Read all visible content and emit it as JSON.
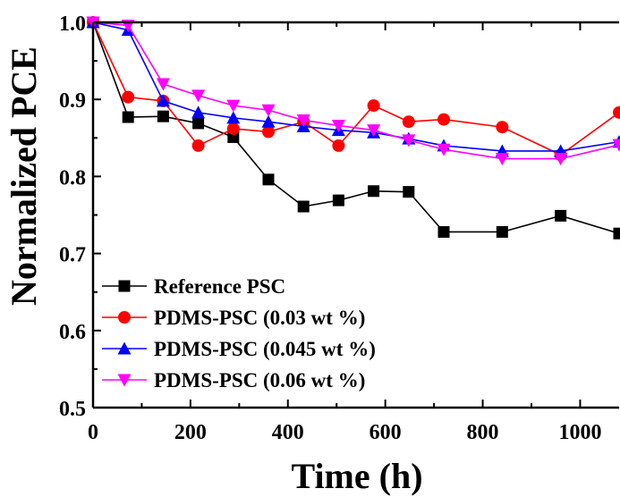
{
  "chart_data": {
    "type": "line",
    "title": "",
    "xlabel": "Time (h)",
    "ylabel": "Normalized PCE",
    "xlim": [
      0,
      1080
    ],
    "ylim": [
      0.5,
      1.0
    ],
    "xticks": [
      0,
      200,
      400,
      600,
      800,
      1000
    ],
    "yticks": [
      0.5,
      0.6,
      0.7,
      0.8,
      0.9,
      1.0
    ],
    "xtick_labels": [
      "0",
      "200",
      "400",
      "600",
      "800",
      "1000"
    ],
    "ytick_labels": [
      "0.5",
      "0.6",
      "0.7",
      "0.8",
      "0.9",
      "1.0"
    ],
    "grid": false,
    "legend_position": "bottom-left",
    "series": [
      {
        "name": "Reference PSC",
        "color": "#000000",
        "marker": "square",
        "x": [
          0,
          72,
          144,
          216,
          288,
          360,
          432,
          504,
          576,
          648,
          720,
          840,
          960,
          1080
        ],
        "y": [
          1.0,
          0.877,
          0.878,
          0.869,
          0.851,
          0.796,
          0.761,
          0.769,
          0.781,
          0.78,
          0.728,
          0.728,
          0.749,
          0.726
        ]
      },
      {
        "name": "PDMS-PSC (0.03 wt %)",
        "color": "#ff0000",
        "marker": "circle",
        "x": [
          0,
          72,
          144,
          216,
          288,
          360,
          432,
          504,
          576,
          648,
          720,
          840,
          960,
          1080
        ],
        "y": [
          1.0,
          0.903,
          0.898,
          0.84,
          0.862,
          0.858,
          0.871,
          0.84,
          0.892,
          0.871,
          0.874,
          0.864,
          0.828,
          0.883
        ]
      },
      {
        "name": "PDMS-PSC (0.045 wt %)",
        "color": "#0000ff",
        "marker": "triangle-up",
        "x": [
          0,
          72,
          144,
          216,
          288,
          360,
          432,
          504,
          576,
          648,
          720,
          840,
          960,
          1080
        ],
        "y": [
          1.0,
          0.99,
          0.898,
          0.883,
          0.876,
          0.871,
          0.865,
          0.86,
          0.857,
          0.849,
          0.84,
          0.833,
          0.833,
          0.845
        ]
      },
      {
        "name": "PDMS-PSC (0.06 wt %)",
        "color": "#ff00ff",
        "marker": "triangle-down",
        "x": [
          0,
          72,
          144,
          216,
          288,
          360,
          432,
          504,
          576,
          648,
          720,
          840,
          960,
          1080
        ],
        "y": [
          1.0,
          0.996,
          0.92,
          0.905,
          0.892,
          0.886,
          0.873,
          0.866,
          0.86,
          0.847,
          0.835,
          0.823,
          0.823,
          0.841
        ]
      }
    ]
  }
}
